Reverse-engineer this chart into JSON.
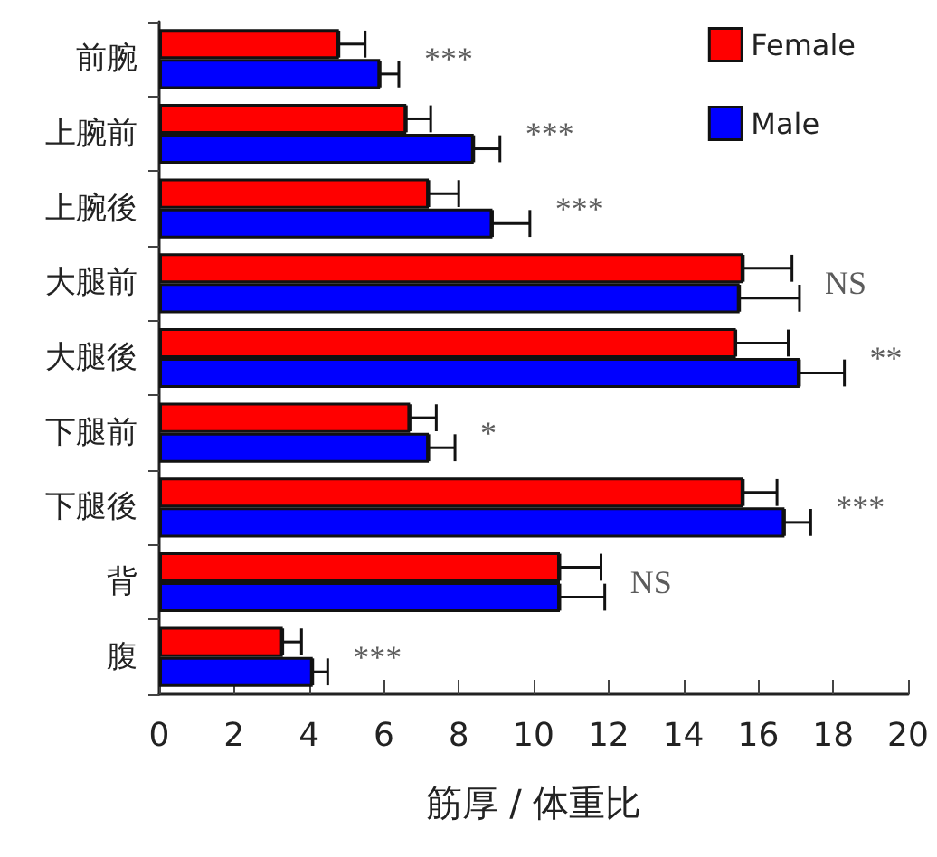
{
  "chart_data": {
    "type": "bar",
    "orientation": "horizontal",
    "xlabel": "筋厚 / 体重比",
    "categories": [
      "前腕",
      "上腕前",
      "上腕後",
      "大腿前",
      "大腿後",
      "下腿前",
      "下腿後",
      "背",
      "腹"
    ],
    "series": [
      {
        "name": "Female",
        "color": "#ff0000",
        "values": [
          4.8,
          6.6,
          7.2,
          15.6,
          15.4,
          6.7,
          15.6,
          10.7,
          3.3
        ],
        "errors": [
          [
            4.8,
            5.5
          ],
          [
            6.6,
            7.25
          ],
          [
            7.2,
            8.0
          ],
          [
            15.6,
            16.9
          ],
          [
            15.4,
            16.8
          ],
          [
            6.7,
            7.4
          ],
          [
            15.6,
            16.5
          ],
          [
            10.7,
            11.8
          ],
          [
            3.3,
            3.8
          ]
        ]
      },
      {
        "name": "Male",
        "color": "#0000ff",
        "values": [
          5.9,
          8.4,
          8.9,
          15.5,
          17.1,
          7.2,
          16.7,
          10.7,
          4.1
        ],
        "errors": [
          [
            5.9,
            6.4
          ],
          [
            8.4,
            9.1
          ],
          [
            8.9,
            9.9
          ],
          [
            15.5,
            17.1
          ],
          [
            17.1,
            18.3
          ],
          [
            7.2,
            7.9
          ],
          [
            16.7,
            17.4
          ],
          [
            10.7,
            11.9
          ],
          [
            4.1,
            4.5
          ]
        ]
      }
    ],
    "xlim": [
      0,
      20
    ],
    "xticks": [
      0,
      2,
      4,
      6,
      8,
      10,
      12,
      14,
      16,
      18,
      20
    ],
    "grid": false,
    "legend": "top right",
    "annotations": [
      "***",
      "***",
      "***",
      "NS",
      "**",
      "*",
      "***",
      "NS",
      "***"
    ]
  }
}
